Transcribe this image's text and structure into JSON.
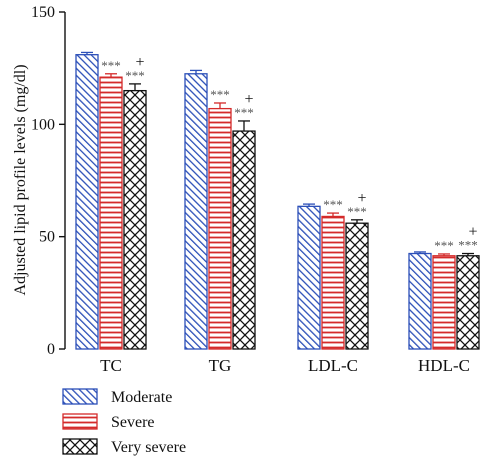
{
  "chart_data": {
    "type": "bar",
    "ylabel": "Adjusted lipid profile levels (mg/dl)",
    "ylim": [
      0,
      150
    ],
    "yticks": [
      "0",
      "50",
      "100",
      "150"
    ],
    "categories": [
      "TC",
      "TG",
      "LDL-C",
      "HDL-C"
    ],
    "series": [
      {
        "name": "Moderate",
        "values": [
          131,
          122.5,
          63.5,
          42.5
        ],
        "errors": [
          1.0,
          1.5,
          1.0,
          0.7
        ],
        "color": "#2b4fb8",
        "pattern": "diagonal"
      },
      {
        "name": "Severe",
        "values": [
          121,
          107,
          59,
          41.5
        ],
        "errors": [
          1.5,
          2.5,
          1.5,
          0.8
        ],
        "color": "#d42a2a",
        "pattern": "horizontal"
      },
      {
        "name": "Very severe",
        "values": [
          115,
          97,
          56,
          41.5
        ],
        "errors": [
          3.0,
          4.5,
          1.5,
          1.0
        ],
        "color": "#111111",
        "pattern": "crosshatch"
      }
    ],
    "annotations": [
      {
        "category": 0,
        "series": 1,
        "text": "***"
      },
      {
        "category": 0,
        "series": 2,
        "text": "***",
        "extra": "+"
      },
      {
        "category": 1,
        "series": 1,
        "text": "***"
      },
      {
        "category": 1,
        "series": 2,
        "text": "***",
        "extra": "+"
      },
      {
        "category": 2,
        "series": 1,
        "text": "***"
      },
      {
        "category": 2,
        "series": 2,
        "text": "***",
        "extra": "+"
      },
      {
        "category": 3,
        "series": 1,
        "text": "***"
      },
      {
        "category": 3,
        "series": 2,
        "text": "***",
        "extra": "+"
      }
    ],
    "legend_position": "bottom-left",
    "grid": false
  }
}
